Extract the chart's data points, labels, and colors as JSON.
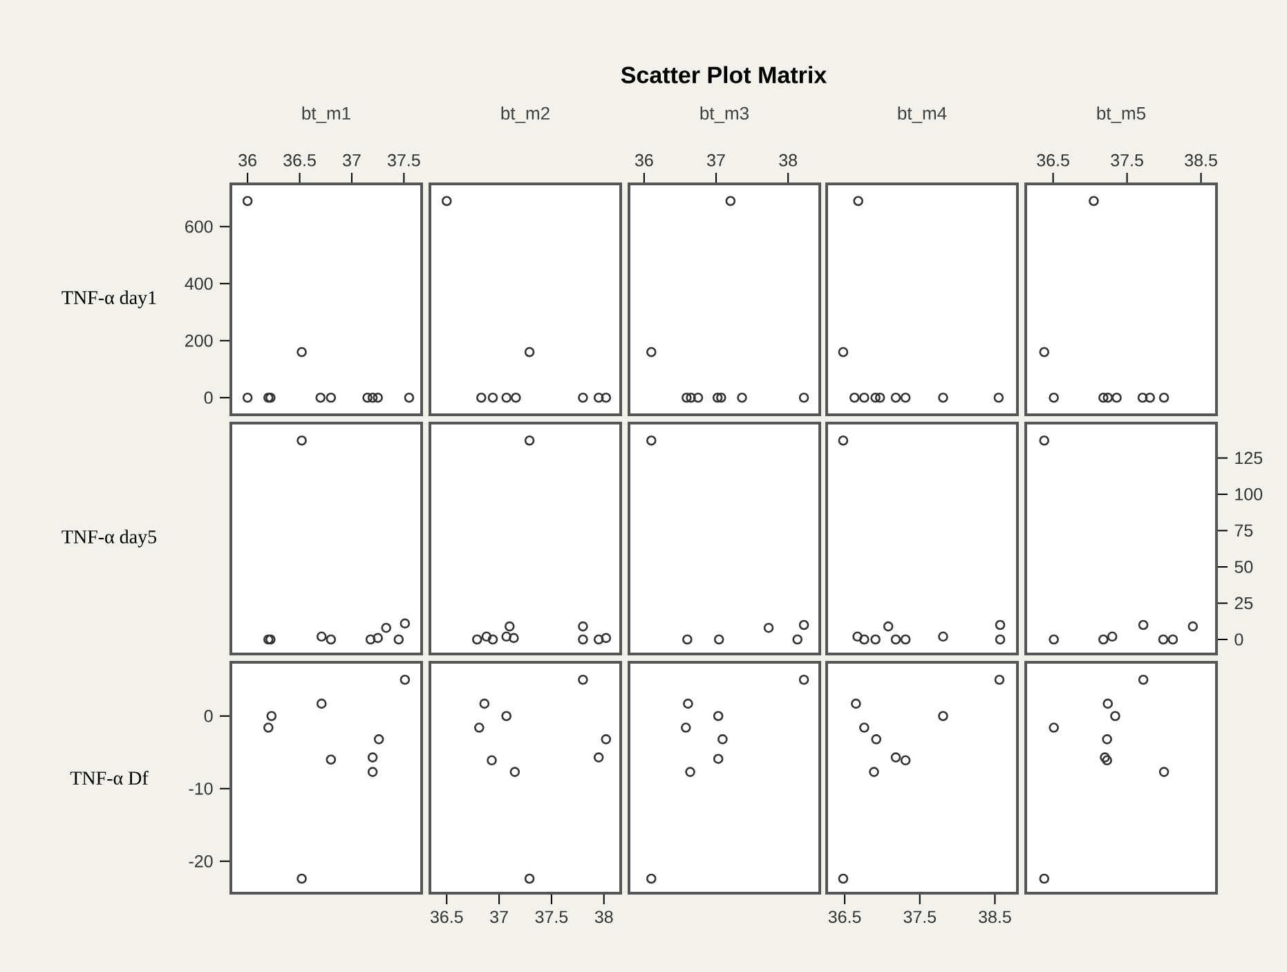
{
  "chart_data": [
    {
      "type": "scatter",
      "xlabel": "bt_m1",
      "ylabel": "TNF-α day1",
      "marker": "circle",
      "color": "#333333",
      "x": [
        36.0,
        36.52,
        36.0,
        36.2,
        36.22,
        36.7,
        36.8,
        37.15,
        37.2,
        37.25,
        37.55
      ],
      "values": [
        690,
        160,
        0,
        0,
        0,
        0,
        0,
        0,
        0,
        0,
        0
      ],
      "xlim": [
        35.84,
        37.67
      ],
      "ylim": [
        -60,
        750
      ],
      "xticks": [
        36,
        36.5,
        37,
        37.5
      ],
      "yticks": [
        0,
        200,
        400,
        600
      ]
    },
    {
      "type": "scatter",
      "xlabel": "bt_m2",
      "marker": "circle",
      "color": "#333333",
      "x": [
        36.5,
        37.29,
        36.83,
        36.94,
        37.07,
        37.16,
        37.8,
        37.95,
        38.02
      ],
      "values": [
        690,
        160,
        0,
        0,
        0,
        0,
        0,
        0,
        0
      ],
      "xlim": [
        36.34,
        38.16
      ],
      "ylim": [
        -60,
        750
      ],
      "tick_labels": false
    },
    {
      "type": "scatter",
      "title": "Scatter Plot Matrix",
      "xlabel": "bt_m3",
      "marker": "circle",
      "color": "#333333",
      "x": [
        37.2,
        36.1,
        36.59,
        36.65,
        36.75,
        37.02,
        37.07,
        37.36,
        38.22
      ],
      "values": [
        690,
        160,
        0,
        0,
        0,
        0,
        0,
        0,
        0
      ],
      "xlim": [
        35.79,
        38.44
      ],
      "ylim": [
        -60,
        750
      ],
      "xticks": [
        36,
        37,
        38
      ],
      "tick_labels": "x"
    },
    {
      "type": "scatter",
      "xlabel": "bt_m4",
      "marker": "circle",
      "color": "#333333",
      "x": [
        36.68,
        36.48,
        36.63,
        36.76,
        36.91,
        36.97,
        37.18,
        37.31,
        37.81,
        38.55
      ],
      "values": [
        690,
        160,
        0,
        0,
        0,
        0,
        0,
        0,
        0,
        0
      ],
      "xlim": [
        36.26,
        38.8
      ],
      "ylim": [
        -60,
        750
      ],
      "tick_labels": false
    },
    {
      "type": "scatter",
      "xlabel": "bt_m5",
      "marker": "circle",
      "color": "#333333",
      "x": [
        37.05,
        36.38,
        36.51,
        37.18,
        37.24,
        37.36,
        37.71,
        37.81,
        38.0
      ],
      "values": [
        690,
        160,
        0,
        0,
        0,
        0,
        0,
        0,
        0
      ],
      "xlim": [
        36.13,
        38.71
      ],
      "ylim": [
        -60,
        750
      ],
      "xticks": [
        36.5,
        37.5,
        38.5
      ],
      "tick_labels": "x"
    },
    {
      "type": "scatter",
      "ylabel": "TNF-α day5",
      "marker": "circle",
      "color": "#333333",
      "x": [
        36.52,
        36.2,
        36.22,
        36.71,
        36.8,
        37.18,
        37.25,
        37.33,
        37.45,
        37.51
      ],
      "values": [
        137,
        0,
        0,
        2,
        0,
        0,
        1,
        8,
        0,
        11
      ],
      "xlim": [
        35.84,
        37.67
      ],
      "ylim": [
        -10,
        149
      ],
      "tick_labels": false
    },
    {
      "type": "scatter",
      "marker": "circle",
      "color": "#333333",
      "x": [
        37.29,
        36.79,
        36.88,
        36.94,
        37.1,
        37.07,
        37.14,
        37.8,
        37.8,
        37.95,
        38.02
      ],
      "values": [
        137,
        0,
        2,
        0,
        9,
        2,
        1,
        9,
        0,
        0,
        1
      ],
      "xlim": [
        36.34,
        38.16
      ],
      "ylim": [
        -10,
        149
      ],
      "tick_labels": false
    },
    {
      "type": "scatter",
      "marker": "circle",
      "color": "#333333",
      "x": [
        36.1,
        36.6,
        37.04,
        37.73,
        38.22,
        38.13
      ],
      "values": [
        137,
        0,
        0,
        8,
        10,
        0
      ],
      "xlim": [
        35.79,
        38.44
      ],
      "ylim": [
        -10,
        149
      ],
      "tick_labels": false
    },
    {
      "type": "scatter",
      "marker": "circle",
      "color": "#333333",
      "x": [
        36.48,
        36.67,
        36.76,
        36.91,
        37.08,
        37.18,
        37.31,
        37.81,
        38.57,
        38.57
      ],
      "values": [
        137,
        2,
        0,
        0,
        9,
        0,
        0,
        2,
        10,
        0
      ],
      "xlim": [
        36.26,
        38.8
      ],
      "ylim": [
        -10,
        149
      ],
      "tick_labels": false
    },
    {
      "type": "scatter",
      "marker": "circle",
      "color": "#333333",
      "x": [
        36.38,
        36.51,
        37.18,
        37.3,
        37.72,
        37.99,
        38.12,
        38.39
      ],
      "values": [
        137,
        0,
        0,
        2,
        10,
        0,
        0,
        9
      ],
      "xlim": [
        36.13,
        38.71
      ],
      "ylim": [
        -10,
        149
      ],
      "yticks": [
        0,
        25,
        50,
        75,
        100,
        125
      ],
      "tick_labels": "y"
    },
    {
      "type": "scatter",
      "ylabel": "TNF-α Df",
      "marker": "circle",
      "color": "#333333",
      "x": [
        36.23,
        36.2,
        36.71,
        36.8,
        36.52,
        37.2,
        37.2,
        37.26,
        37.51
      ],
      "values": [
        0,
        -1.6,
        1.7,
        -6,
        -22.4,
        -5.7,
        -7.7,
        -3.2,
        5
      ],
      "xlim": [
        35.84,
        37.67
      ],
      "ylim": [
        -24.4,
        7.4
      ],
      "yticks": [
        -20,
        -10,
        0
      ],
      "tick_labels": "y"
    },
    {
      "type": "scatter",
      "marker": "circle",
      "color": "#333333",
      "x": [
        36.86,
        36.81,
        37.07,
        36.93,
        37.15,
        37.29,
        37.8,
        37.95,
        38.02
      ],
      "values": [
        1.7,
        -1.6,
        0,
        -6.1,
        -7.7,
        -22.4,
        5,
        -5.7,
        -3.2
      ],
      "xlim": [
        36.34,
        38.16
      ],
      "ylim": [
        -24.4,
        7.4
      ],
      "xticks": [
        36.5,
        37,
        37.5,
        38
      ],
      "tick_labels": "x"
    },
    {
      "type": "scatter",
      "marker": "circle",
      "color": "#333333",
      "x": [
        36.1,
        36.61,
        36.58,
        36.64,
        37.03,
        37.09,
        37.03,
        38.22
      ],
      "values": [
        -22.4,
        1.7,
        -1.6,
        -7.7,
        0,
        -3.2,
        -5.9,
        5
      ],
      "xlim": [
        35.79,
        38.44
      ],
      "ylim": [
        -24.4,
        7.4
      ],
      "tick_labels": false
    },
    {
      "type": "scatter",
      "marker": "circle",
      "color": "#333333",
      "x": [
        36.48,
        36.65,
        36.76,
        36.92,
        36.89,
        37.18,
        37.31,
        37.81,
        38.56
      ],
      "values": [
        -22.4,
        1.7,
        -1.6,
        -3.2,
        -7.7,
        -5.7,
        -6.1,
        0,
        5
      ],
      "xlim": [
        36.26,
        38.8
      ],
      "ylim": [
        -24.4,
        7.4
      ],
      "xticks": [
        36.5,
        37.5,
        38.5
      ],
      "tick_labels": "x"
    },
    {
      "type": "scatter",
      "marker": "circle",
      "color": "#333333",
      "x": [
        36.38,
        36.51,
        37.24,
        37.34,
        37.23,
        37.2,
        37.23,
        37.72,
        38.0
      ],
      "values": [
        -22.4,
        -1.6,
        1.7,
        0,
        -3.2,
        -5.7,
        -6.1,
        5,
        -7.7
      ],
      "xlim": [
        36.13,
        38.71
      ],
      "ylim": [
        -24.4,
        7.4
      ],
      "tick_labels": false
    }
  ]
}
